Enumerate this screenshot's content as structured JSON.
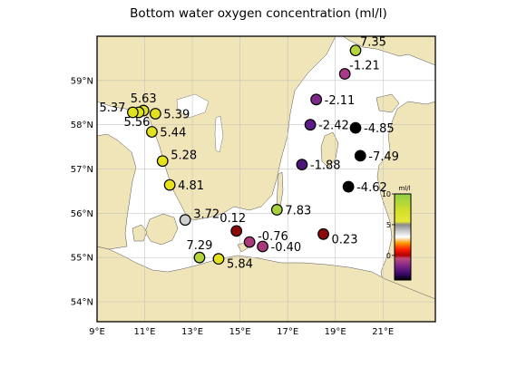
{
  "title": "Bottom water oxygen concentration (ml/l)",
  "map": {
    "x_ticks": [
      "9°E",
      "11°E",
      "13°E",
      "15°E",
      "17°E",
      "19°E",
      "21°E"
    ],
    "y_ticks": [
      "54°N",
      "55°N",
      "56°N",
      "57°N",
      "58°N",
      "59°N"
    ],
    "lon_range": [
      9,
      23.2
    ],
    "lat_range": [
      53.55,
      60.0
    ],
    "land_color": "#f0e5b8",
    "sea_color": "#ffffff",
    "grid": true
  },
  "stations": [
    {
      "lon": 19.85,
      "lat": 59.68,
      "value": 7.35,
      "label": "7.35",
      "color": "#b5d33b",
      "label_pos": "top-right"
    },
    {
      "lon": 19.4,
      "lat": 59.15,
      "value": -1.21,
      "label": "-1.21",
      "color": "#a83a87",
      "label_pos": "top-right"
    },
    {
      "lon": 18.2,
      "lat": 58.57,
      "value": -2.11,
      "label": "-2.11",
      "color": "#7d2a8c",
      "label_pos": "right"
    },
    {
      "lon": 17.95,
      "lat": 58.0,
      "value": -2.42,
      "label": "-2.42",
      "color": "#5c1c8c",
      "label_pos": "right"
    },
    {
      "lon": 19.85,
      "lat": 57.93,
      "value": -4.85,
      "label": "-4.85",
      "color": "#000000",
      "label_pos": "right"
    },
    {
      "lon": 20.05,
      "lat": 57.3,
      "value": -7.49,
      "label": "-7.49",
      "color": "#000000",
      "label_pos": "right"
    },
    {
      "lon": 17.6,
      "lat": 57.1,
      "value": -1.88,
      "label": "-1.88",
      "color": "#4b1678",
      "label_pos": "right"
    },
    {
      "lon": 19.55,
      "lat": 56.6,
      "value": -4.62,
      "label": "-4.62",
      "color": "#000000",
      "label_pos": "right"
    },
    {
      "lon": 16.55,
      "lat": 56.08,
      "value": 7.83,
      "label": "7.83",
      "color": "#a8d23a",
      "label_pos": "right"
    },
    {
      "lon": 18.5,
      "lat": 55.53,
      "value": 0.23,
      "label": "0.23",
      "color": "#8b0a0a",
      "label_pos": "right-low"
    },
    {
      "lon": 14.85,
      "lat": 55.6,
      "value": 0.12,
      "label": "0.12",
      "color": "#8b0a0a",
      "label_pos": "top-left"
    },
    {
      "lon": 15.4,
      "lat": 55.35,
      "value": -0.76,
      "label": "-0.76",
      "color": "#a83a7a",
      "label_pos": "right-up"
    },
    {
      "lon": 15.95,
      "lat": 55.25,
      "value": -0.4,
      "label": "-0.40",
      "color": "#a83a7a",
      "label_pos": "right"
    },
    {
      "lon": 12.7,
      "lat": 55.85,
      "value": 3.72,
      "label": "3.72",
      "color": "#d0d0d0",
      "label_pos": "right-up"
    },
    {
      "lon": 13.3,
      "lat": 55.0,
      "value": 7.29,
      "label": "7.29",
      "color": "#b5d33b",
      "label_pos": "top"
    },
    {
      "lon": 14.1,
      "lat": 54.97,
      "value": 5.84,
      "label": "5.84",
      "color": "#e4e21e",
      "label_pos": "right-low"
    },
    {
      "lon": 12.05,
      "lat": 56.64,
      "value": 4.81,
      "label": "4.81",
      "color": "#e9e11c",
      "label_pos": "right"
    },
    {
      "lon": 11.75,
      "lat": 57.18,
      "value": 5.28,
      "label": "5.28",
      "color": "#e5e21e",
      "label_pos": "right-up"
    },
    {
      "lon": 11.3,
      "lat": 57.84,
      "value": 5.44,
      "label": "5.44",
      "color": "#e0e21f",
      "label_pos": "right"
    },
    {
      "lon": 11.45,
      "lat": 58.25,
      "value": 5.39,
      "label": "5.39",
      "color": "#e0e21f",
      "label_pos": "right"
    },
    {
      "lon": 10.95,
      "lat": 58.32,
      "value": 5.63,
      "label": "5.63",
      "color": "#dfe11f",
      "label_pos": "top"
    },
    {
      "lon": 10.75,
      "lat": 58.28,
      "value": 5.56,
      "label": "5.56",
      "color": "#dfe11f",
      "label_pos": "bottom"
    },
    {
      "lon": 10.5,
      "lat": 58.28,
      "value": 5.37,
      "label": "5.37",
      "color": "#e0e21f",
      "label_pos": "left-up"
    }
  ],
  "colorbar": {
    "unit": "ml/l",
    "ticks": [
      "10",
      "5",
      "0"
    ],
    "tick_values": [
      10,
      5,
      0
    ],
    "range": [
      -4,
      10
    ],
    "stops": [
      {
        "v": -4,
        "color": "#000000"
      },
      {
        "v": -3,
        "color": "#3a0a6a"
      },
      {
        "v": -1.5,
        "color": "#8a2a8a"
      },
      {
        "v": -0.5,
        "color": "#c04a78"
      },
      {
        "v": 0,
        "color": "#b00000"
      },
      {
        "v": 1,
        "color": "#ff2000"
      },
      {
        "v": 2,
        "color": "#ff9800"
      },
      {
        "v": 3,
        "color": "#ffffff"
      },
      {
        "v": 4,
        "color": "#c8c8c8"
      },
      {
        "v": 5,
        "color": "#8a8a8a"
      },
      {
        "v": 5.5,
        "color": "#e6e63a"
      },
      {
        "v": 7,
        "color": "#d8e02a"
      },
      {
        "v": 10,
        "color": "#8fd044"
      }
    ]
  }
}
